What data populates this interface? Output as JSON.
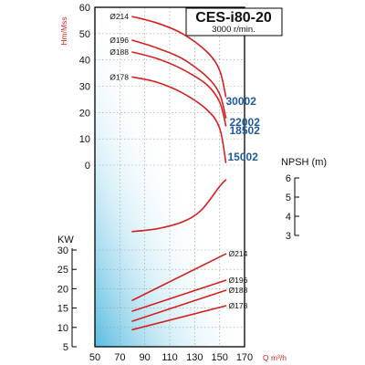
{
  "chart_data": {
    "type": "line",
    "title": "CES-i80-20",
    "subtitle": "3000 r/min.",
    "xlabel": "Q m³/h",
    "xlim": [
      50,
      170
    ],
    "x_ticks": [
      "50",
      "70",
      "90",
      "110",
      "130",
      "150",
      "170"
    ],
    "head": {
      "ylabel": "Hm/Mss",
      "ylim": [
        0,
        60
      ],
      "y_ticks": [
        "60",
        "50",
        "40",
        "30",
        "20",
        "10",
        "0"
      ],
      "series": [
        {
          "name": "30002",
          "diameter": "Ø214",
          "x": [
            80,
            100,
            120,
            140,
            150,
            155
          ],
          "y": [
            56.5,
            54,
            50,
            43,
            36,
            26
          ]
        },
        {
          "name": "22002",
          "diameter": "Ø196",
          "x": [
            80,
            100,
            120,
            140,
            150,
            155
          ],
          "y": [
            47.5,
            44.5,
            40.5,
            33.5,
            27,
            18
          ]
        },
        {
          "name": "18502",
          "diameter": "Ø188",
          "x": [
            80,
            100,
            120,
            140,
            150,
            155
          ],
          "y": [
            43,
            40.5,
            36.5,
            30.5,
            24,
            15
          ]
        },
        {
          "name": "15002",
          "diameter": "Ø178",
          "x": [
            80,
            100,
            120,
            140,
            150,
            155
          ],
          "y": [
            33.5,
            31.5,
            27.5,
            21,
            14,
            1
          ]
        }
      ]
    },
    "npsh": {
      "ylabel": "NPSH (m)",
      "ylim": [
        3,
        6
      ],
      "y_ticks": [
        "6",
        "5",
        "4",
        "3"
      ],
      "series": [
        {
          "x": [
            80,
            100,
            120,
            135,
            150,
            155
          ],
          "y": [
            3.2,
            3.35,
            3.7,
            4.3,
            5.55,
            5.9
          ]
        }
      ]
    },
    "power": {
      "ylabel": "KW",
      "ylim": [
        5,
        30
      ],
      "y_ticks": [
        "30",
        "25",
        "20",
        "15",
        "10",
        "5"
      ],
      "series": [
        {
          "diameter": "Ø214",
          "x": [
            80,
            155
          ],
          "y": [
            17,
            29
          ]
        },
        {
          "diameter": "Ø196",
          "x": [
            80,
            155
          ],
          "y": [
            14.2,
            22.2
          ]
        },
        {
          "diameter": "Ø188",
          "x": [
            80,
            155
          ],
          "y": [
            11.6,
            19.6
          ]
        },
        {
          "diameter": "Ø178",
          "x": [
            80,
            155
          ],
          "y": [
            9.4,
            15.6
          ]
        }
      ]
    },
    "grid": true,
    "colors": {
      "curve": "#d42020",
      "model_label": "#1f5a99",
      "gradient_edge": "#4fb8e0"
    }
  }
}
